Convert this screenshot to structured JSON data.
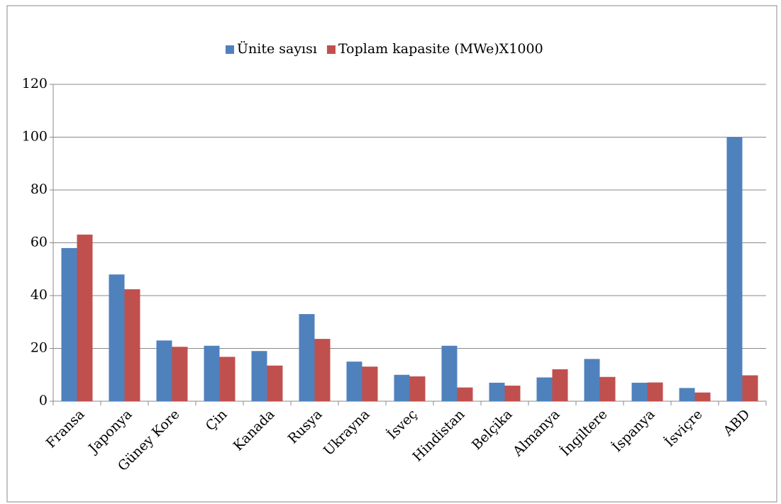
{
  "chart_data": {
    "type": "bar",
    "categories": [
      "Fransa",
      "Japonya",
      "Güney Kore",
      "Çin",
      "Kanada",
      "Rusya",
      "Ukrayna",
      "İsveç",
      "Hindistan",
      "Belçika",
      "Almanya",
      "İngiltere",
      "İspanya",
      "İsviçre",
      "ABD"
    ],
    "series": [
      {
        "name": "Ünite sayısı",
        "color": "#4f81bd",
        "values": [
          58,
          48,
          23,
          21,
          19,
          33,
          15,
          10,
          21,
          7,
          9,
          16,
          7,
          5,
          100
        ]
      },
      {
        "name": "Toplam kapasite (MWe)X1000",
        "color": "#c0504d",
        "values": [
          63.1,
          42.4,
          20.6,
          16.8,
          13.5,
          23.6,
          13.1,
          9.4,
          5.2,
          5.9,
          12.1,
          9.2,
          7.1,
          3.3,
          9.8
        ]
      }
    ],
    "ylim": [
      0,
      120
    ],
    "yticks": [
      0,
      20,
      40,
      60,
      80,
      100,
      120
    ],
    "grid": true,
    "legend": "top"
  }
}
